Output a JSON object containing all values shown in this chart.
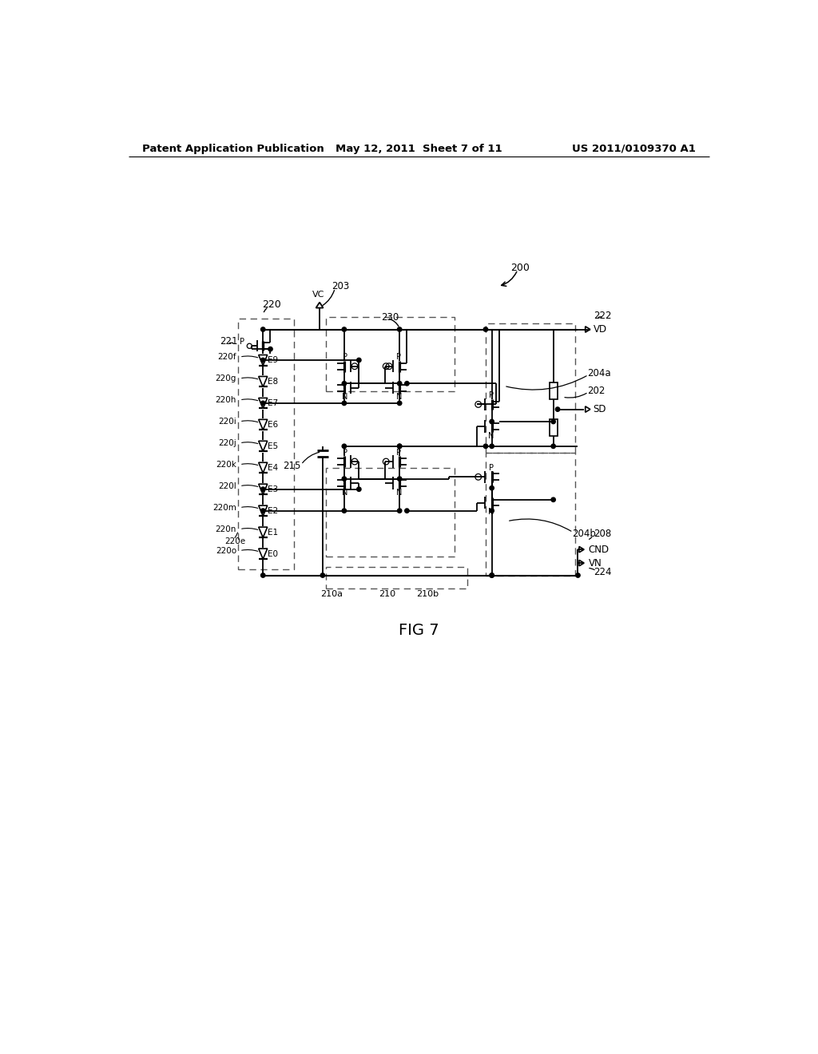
{
  "title": "FIG 7",
  "header_left": "Patent Application Publication",
  "header_mid": "May 12, 2011  Sheet 7 of 11",
  "header_right": "US 2011/0109370 A1",
  "bg_color": "#ffffff"
}
